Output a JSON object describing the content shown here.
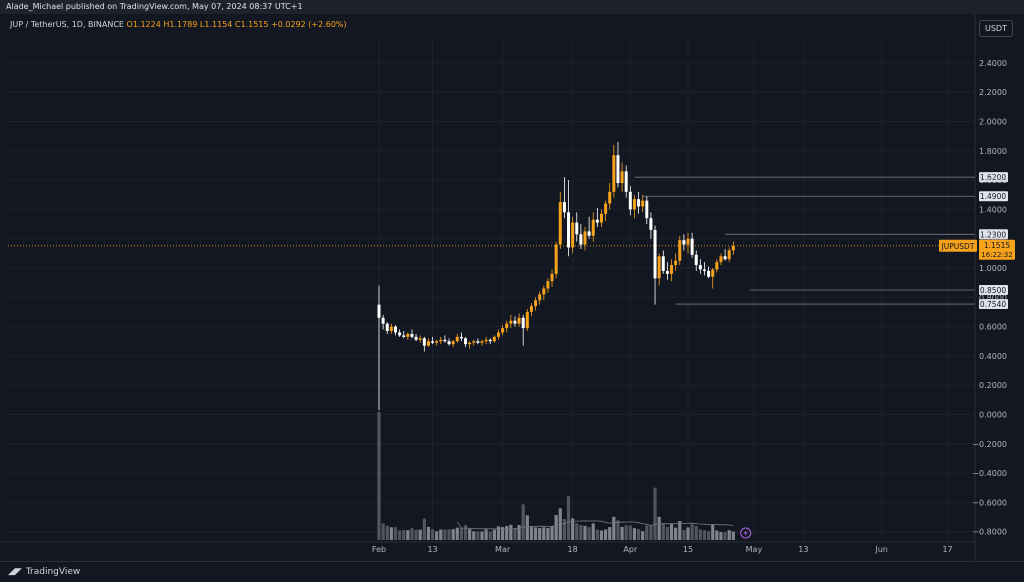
{
  "header": {
    "publisher": "Alade_Michael published on TradingView.com, May 07, 2024 08:37 UTC+1",
    "symbol": "JUP / TetherUS, 1D, BINANCE",
    "ohlc": "O1.1224  H1.1789  L1.1154  C1.1515  +0.0292 (+2.60%)",
    "currency": "USDT"
  },
  "footer": {
    "logo_text": "TradingView"
  },
  "colors": {
    "background": "#131722",
    "up": "#f7a21b",
    "down": "#ffffff",
    "grid": "#1e222d",
    "axis_text": "#b2b5be",
    "hline": "#787b86",
    "price_tag": "#f7a21b"
  },
  "chart_data": {
    "type": "candlestick",
    "symbol": "JUPUSDT",
    "last_price": "1.1515",
    "countdown": "16:22:32",
    "y_axis": {
      "ticks": [
        "2.4000",
        "2.2000",
        "2.0000",
        "1.8000",
        "1.6000",
        "1.4000",
        "1.2000",
        "1.0000",
        "0.8000",
        "0.6000",
        "0.4000",
        "0.2000",
        "0.0000",
        "−0.2000",
        "−0.4000",
        "−0.6000",
        "−0.8000"
      ],
      "ylim": [
        -0.9,
        2.55
      ]
    },
    "x_axis": {
      "labels": [
        "Feb",
        "13",
        "Mar",
        "18",
        "Apr",
        "15",
        "May",
        "13",
        "Jun",
        "17"
      ],
      "label_dates": [
        "2024-01-31",
        "2024-02-13",
        "2024-03-01",
        "2024-03-18",
        "2024-04-01",
        "2024-04-15",
        "2024-05-01",
        "2024-05-13",
        "2024-06-01",
        "2024-06-17"
      ]
    },
    "horizontal_levels": [
      {
        "label": "1.6200",
        "value": 1.62,
        "from": "2024-04-02"
      },
      {
        "label": "1.4900",
        "value": 1.49,
        "from": "2024-04-04"
      },
      {
        "label": "1.2300",
        "value": 1.23,
        "from": "2024-04-24"
      },
      {
        "label": "0.8500",
        "value": 0.85,
        "from": "2024-04-30"
      },
      {
        "label": "0.7540",
        "value": 0.754,
        "from": "2024-04-12"
      }
    ],
    "start_date": "2024-01-31",
    "candles": [
      [
        0.75,
        0.88,
        0.03,
        0.66
      ],
      [
        0.66,
        0.68,
        0.58,
        0.62
      ],
      [
        0.62,
        0.63,
        0.55,
        0.57
      ],
      [
        0.57,
        0.62,
        0.55,
        0.6
      ],
      [
        0.6,
        0.61,
        0.54,
        0.56
      ],
      [
        0.56,
        0.58,
        0.53,
        0.54
      ],
      [
        0.54,
        0.57,
        0.52,
        0.53
      ],
      [
        0.53,
        0.56,
        0.51,
        0.55
      ],
      [
        0.55,
        0.58,
        0.52,
        0.53
      ],
      [
        0.53,
        0.55,
        0.5,
        0.51
      ],
      [
        0.51,
        0.54,
        0.49,
        0.52
      ],
      [
        0.52,
        0.53,
        0.43,
        0.47
      ],
      [
        0.47,
        0.52,
        0.46,
        0.5
      ],
      [
        0.5,
        0.53,
        0.48,
        0.49
      ],
      [
        0.49,
        0.51,
        0.47,
        0.5
      ],
      [
        0.5,
        0.53,
        0.48,
        0.51
      ],
      [
        0.51,
        0.54,
        0.49,
        0.5
      ],
      [
        0.5,
        0.52,
        0.47,
        0.48
      ],
      [
        0.48,
        0.51,
        0.46,
        0.5
      ],
      [
        0.5,
        0.55,
        0.49,
        0.53
      ],
      [
        0.53,
        0.56,
        0.5,
        0.52
      ],
      [
        0.52,
        0.53,
        0.46,
        0.48
      ],
      [
        0.48,
        0.5,
        0.45,
        0.49
      ],
      [
        0.49,
        0.51,
        0.47,
        0.5
      ],
      [
        0.5,
        0.52,
        0.48,
        0.49
      ],
      [
        0.49,
        0.51,
        0.47,
        0.5
      ],
      [
        0.5,
        0.53,
        0.48,
        0.51
      ],
      [
        0.51,
        0.52,
        0.48,
        0.5
      ],
      [
        0.5,
        0.54,
        0.49,
        0.53
      ],
      [
        0.53,
        0.58,
        0.51,
        0.56
      ],
      [
        0.56,
        0.61,
        0.54,
        0.59
      ],
      [
        0.59,
        0.64,
        0.56,
        0.62
      ],
      [
        0.62,
        0.68,
        0.59,
        0.64
      ],
      [
        0.64,
        0.67,
        0.6,
        0.62
      ],
      [
        0.62,
        0.69,
        0.6,
        0.66
      ],
      [
        0.66,
        0.68,
        0.47,
        0.59
      ],
      [
        0.59,
        0.72,
        0.57,
        0.7
      ],
      [
        0.7,
        0.76,
        0.67,
        0.74
      ],
      [
        0.74,
        0.8,
        0.71,
        0.78
      ],
      [
        0.78,
        0.84,
        0.75,
        0.82
      ],
      [
        0.82,
        0.88,
        0.78,
        0.86
      ],
      [
        0.86,
        0.93,
        0.83,
        0.91
      ],
      [
        0.91,
        0.99,
        0.87,
        0.96
      ],
      [
        0.96,
        1.18,
        0.93,
        1.16
      ],
      [
        1.16,
        1.52,
        1.13,
        1.45
      ],
      [
        1.45,
        1.62,
        1.34,
        1.38
      ],
      [
        1.38,
        1.6,
        1.08,
        1.14
      ],
      [
        1.14,
        1.35,
        1.1,
        1.31
      ],
      [
        1.31,
        1.38,
        1.18,
        1.23
      ],
      [
        1.23,
        1.3,
        1.13,
        1.16
      ],
      [
        1.16,
        1.28,
        1.12,
        1.25
      ],
      [
        1.25,
        1.35,
        1.2,
        1.22
      ],
      [
        1.22,
        1.38,
        1.18,
        1.33
      ],
      [
        1.33,
        1.41,
        1.28,
        1.31
      ],
      [
        1.31,
        1.4,
        1.28,
        1.37
      ],
      [
        1.37,
        1.46,
        1.32,
        1.44
      ],
      [
        1.44,
        1.58,
        1.4,
        1.52
      ],
      [
        1.52,
        1.84,
        1.48,
        1.77
      ],
      [
        1.77,
        1.86,
        1.55,
        1.58
      ],
      [
        1.58,
        1.72,
        1.52,
        1.66
      ],
      [
        1.66,
        1.7,
        1.48,
        1.52
      ],
      [
        1.52,
        1.56,
        1.36,
        1.4
      ],
      [
        1.4,
        1.5,
        1.34,
        1.47
      ],
      [
        1.47,
        1.52,
        1.37,
        1.42
      ],
      [
        1.42,
        1.5,
        1.38,
        1.46
      ],
      [
        1.46,
        1.49,
        1.3,
        1.34
      ],
      [
        1.34,
        1.38,
        1.2,
        1.26
      ],
      [
        1.26,
        1.29,
        0.75,
        0.93
      ],
      [
        0.93,
        1.1,
        0.88,
        1.08
      ],
      [
        1.08,
        1.12,
        0.96,
        0.98
      ],
      [
        0.98,
        1.04,
        0.92,
        0.96
      ],
      [
        0.96,
        1.06,
        0.91,
        1.02
      ],
      [
        1.02,
        1.1,
        0.98,
        1.05
      ],
      [
        1.05,
        1.22,
        1.02,
        1.19
      ],
      [
        1.19,
        1.23,
        1.12,
        1.16
      ],
      [
        1.16,
        1.24,
        1.1,
        1.2
      ],
      [
        1.2,
        1.24,
        1.07,
        1.09
      ],
      [
        1.09,
        1.12,
        0.98,
        1.02
      ],
      [
        1.02,
        1.06,
        0.96,
        0.99
      ],
      [
        0.99,
        1.04,
        0.95,
        0.98
      ],
      [
        0.98,
        1.01,
        0.93,
        0.94
      ],
      [
        0.94,
        1.0,
        0.86,
        0.99
      ],
      [
        0.99,
        1.06,
        0.97,
        1.04
      ],
      [
        1.04,
        1.1,
        1.02,
        1.08
      ],
      [
        1.08,
        1.13,
        1.05,
        1.06
      ],
      [
        1.06,
        1.14,
        1.04,
        1.12
      ],
      [
        1.12,
        1.18,
        1.09,
        1.15
      ]
    ],
    "volume_ylim": [
      0,
      1
    ]
  }
}
